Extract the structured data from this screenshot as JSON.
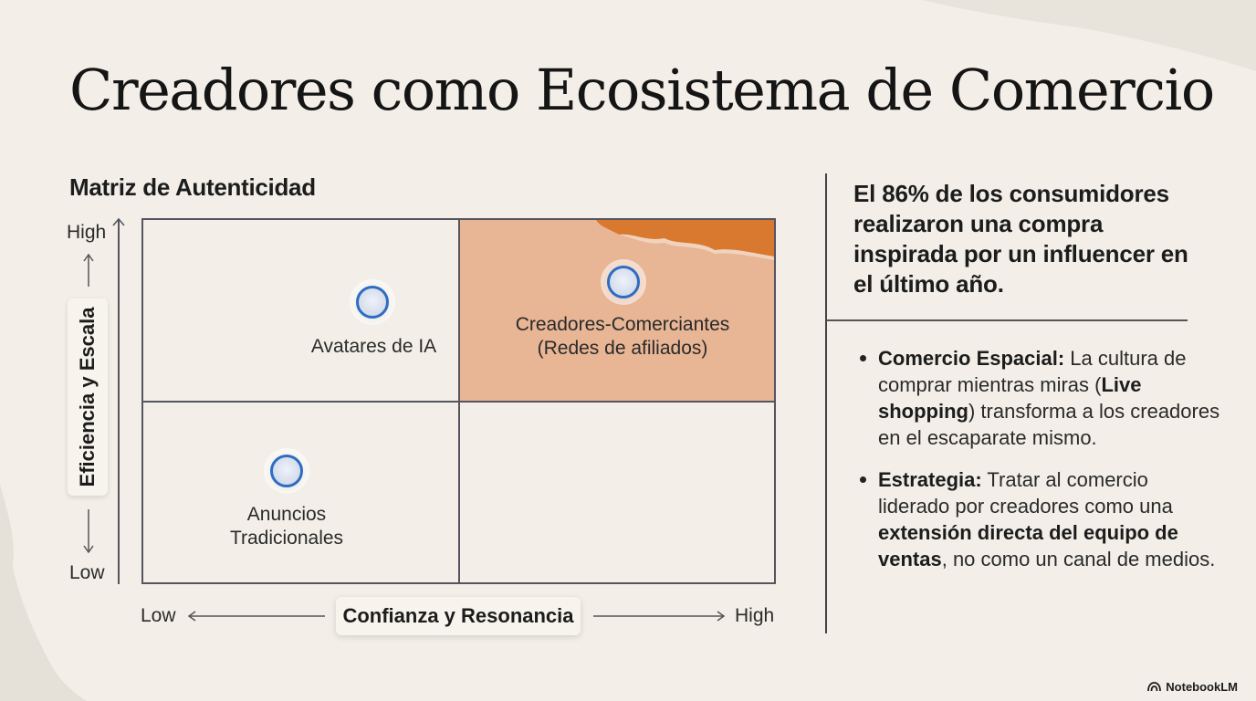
{
  "title": "Creadores como Ecosistema de Comercio",
  "matrix": {
    "title": "Matriz de Autenticidad",
    "y_axis": {
      "label": "Eficiencia y Escala",
      "high": "High",
      "low": "Low"
    },
    "x_axis": {
      "label": "Confianza y Resonancia",
      "low": "Low",
      "high": "High"
    },
    "points": [
      {
        "label": "Avatares de IA"
      },
      {
        "label_line1": "Creadores-Comerciantes",
        "label_line2": "(Redes de afiliados)"
      },
      {
        "label_line1": "Anuncios",
        "label_line2": "Tradicionales"
      }
    ],
    "highlight_color": "#e8b595",
    "accent_color": "#d9782f",
    "marker_color": "#2f6cc4"
  },
  "stat": "El 86% de los consumidores realizaron una compra inspirada por un influencer en el último año.",
  "bullets": [
    {
      "b1": "Comercio Espacial:",
      "t1": " La cultura de comprar mientras miras (",
      "b2": "Live shopping",
      "t2": ") transforma a los creadores en el escaparate mismo."
    },
    {
      "b1": "Estrategia:",
      "t1": " Tratar al comercio liderado por creadores como una ",
      "b2": "extensión directa del equipo de ventas",
      "t2": ", no como un canal de medios."
    }
  ],
  "brand": "NotebookLM"
}
